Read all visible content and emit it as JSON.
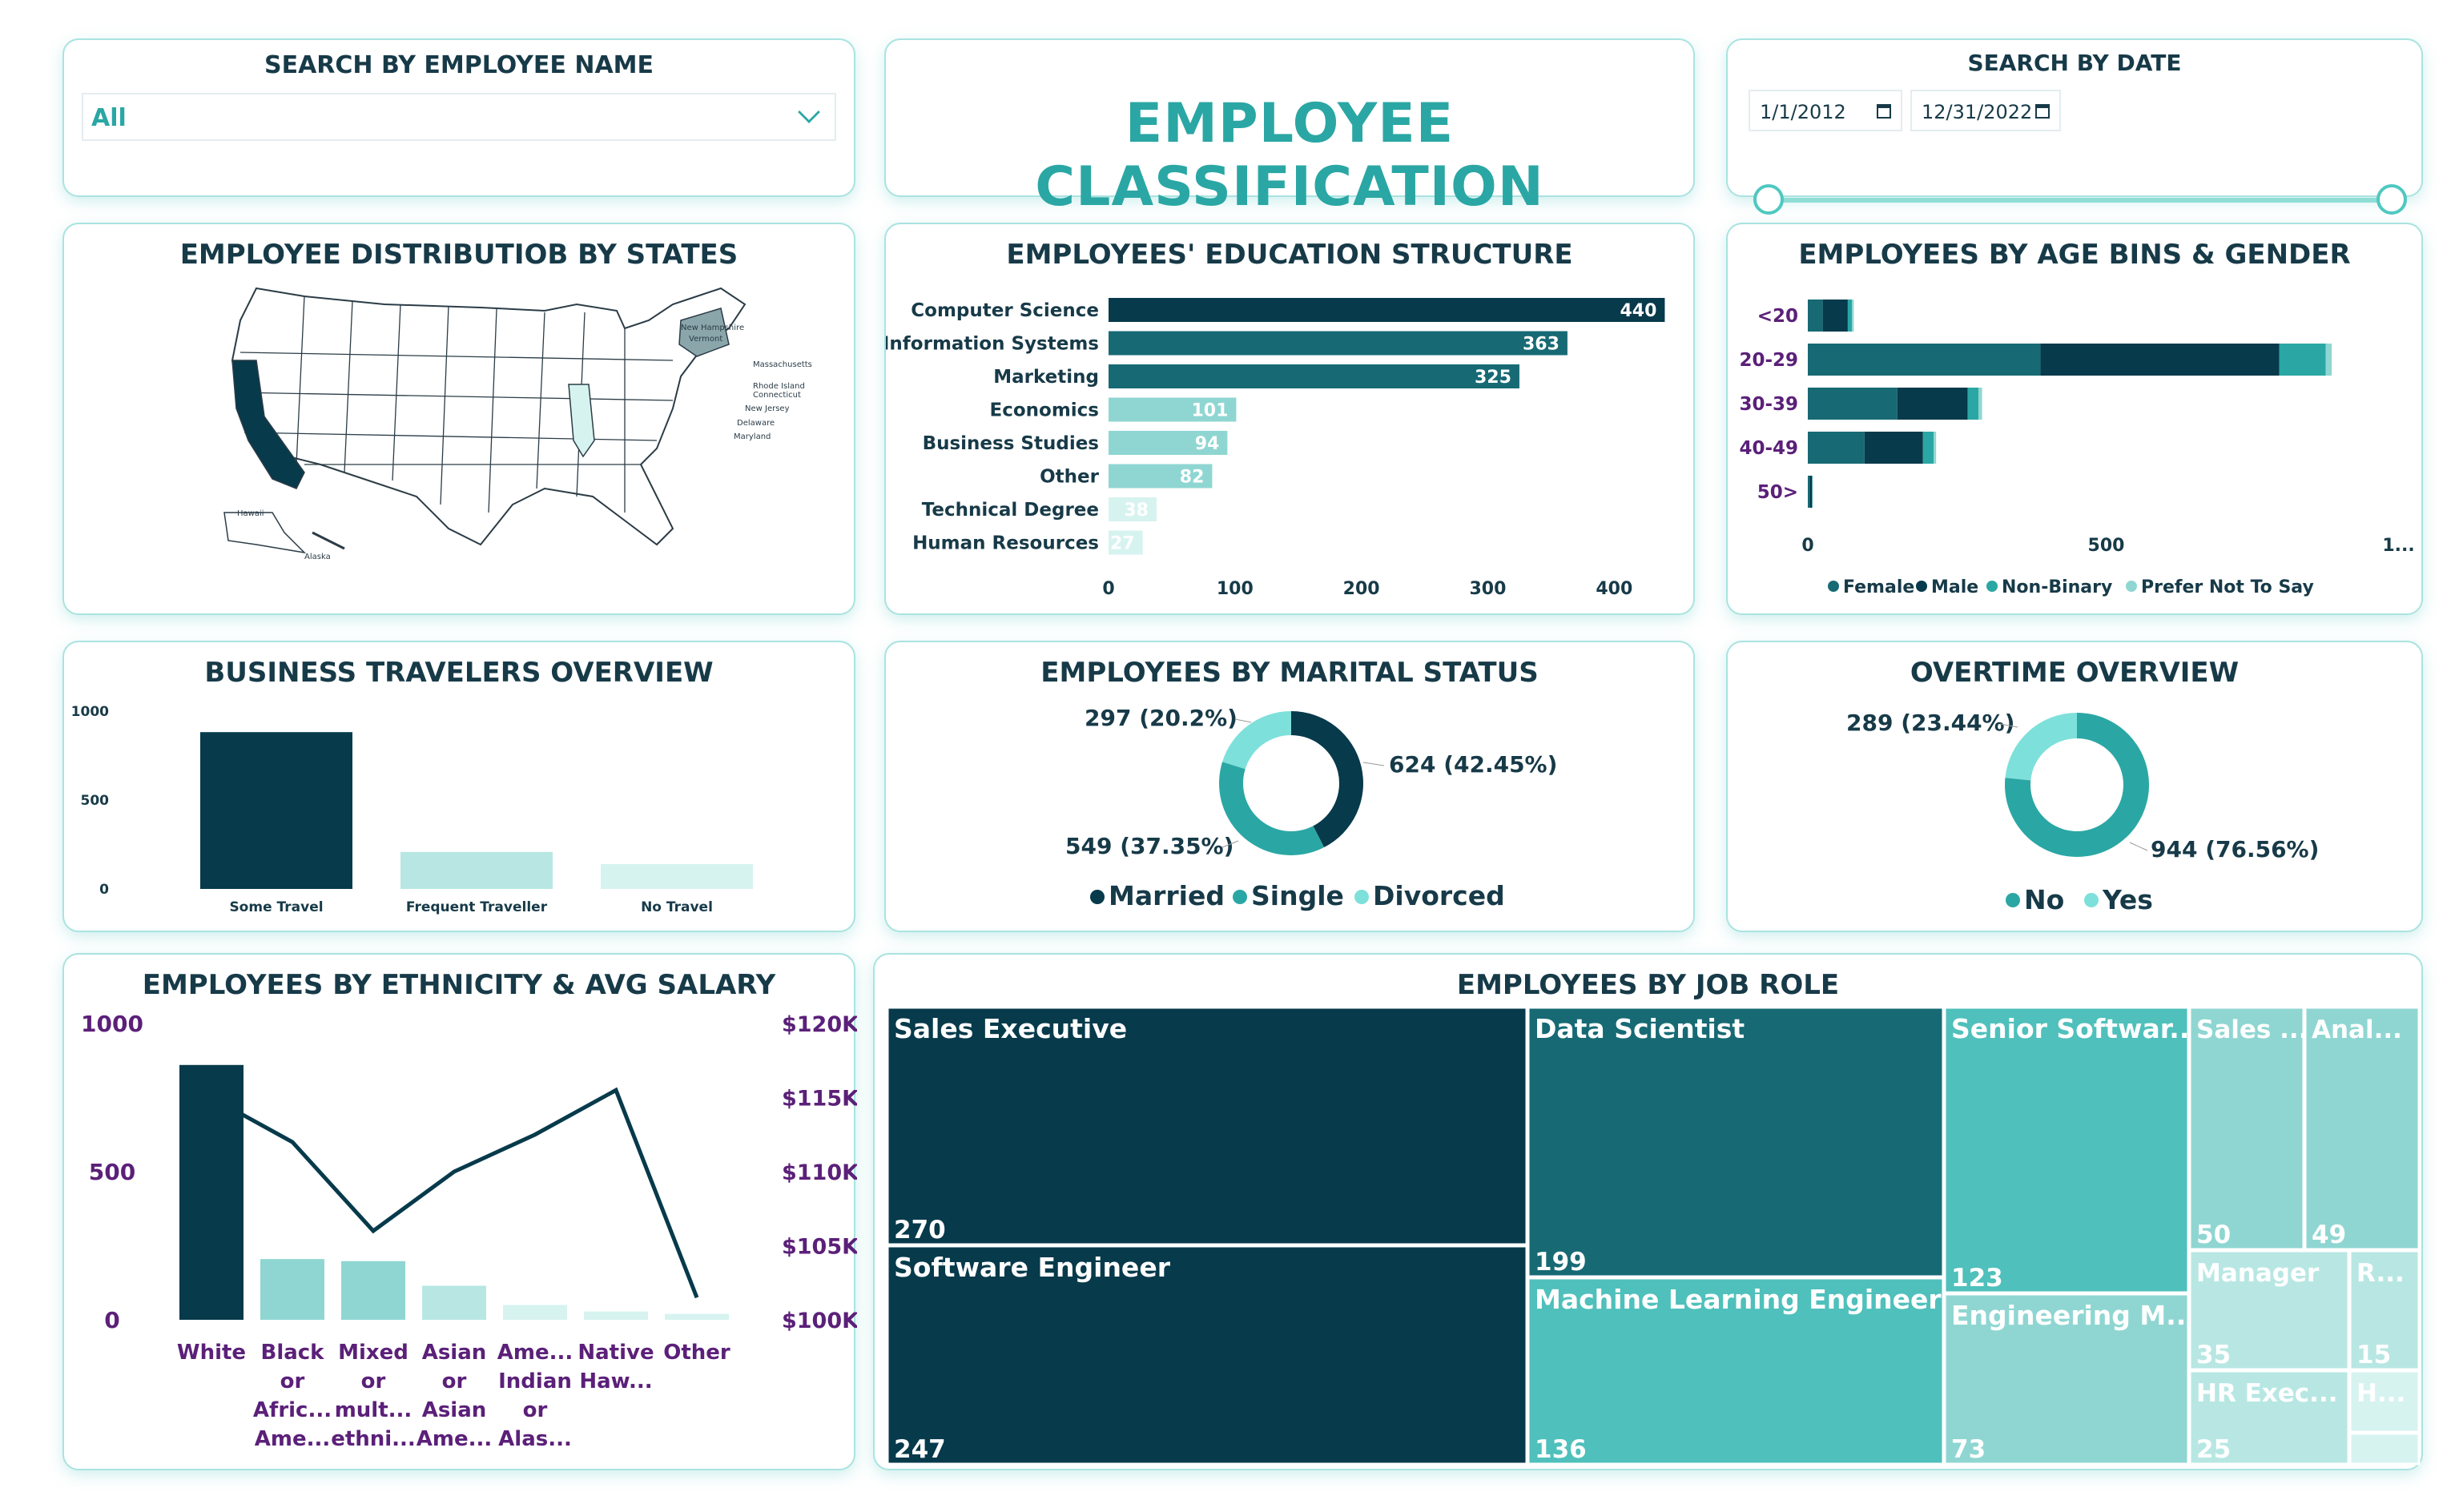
{
  "name_slicer": {
    "title": "SEARCH BY EMPLOYEE NAME",
    "value": "All"
  },
  "main_title": "EMPLOYEE CLASSIFICATION",
  "date_slicer": {
    "title": "SEARCH BY DATE",
    "start": "1/1/2012",
    "end": "12/31/2022"
  },
  "map_card": {
    "title": "EMPLOYEE DISTRIBUTIOB BY STATES",
    "labels": [
      "New Hampshire",
      "Vermont",
      "Massachusetts",
      "Rhode Island",
      "Connecticut",
      "New Jersey",
      "Delaware",
      "Maryland",
      "Hawaii",
      "Alaska"
    ]
  },
  "colors": {
    "dark": "#073a4b",
    "teal1": "#176a74",
    "teal2": "#2aa7a4",
    "teal3": "#4fc0bb",
    "light1": "#8fd6d2",
    "light2": "#b8e7e3",
    "light3": "#d6f3f0",
    "purple": "#5b2079"
  },
  "education": {
    "title": "EMPLOYEES' EDUCATION STRUCTURE",
    "chart_data": {
      "type": "bar",
      "orientation": "horizontal",
      "categories": [
        "Computer Science",
        "Information Systems",
        "Marketing",
        "Economics",
        "Business Studies",
        "Other",
        "Technical Degree",
        "Human Resources"
      ],
      "values": [
        440,
        363,
        325,
        101,
        94,
        82,
        38,
        27
      ],
      "xticks": [
        "0",
        "100",
        "200",
        "300",
        "400"
      ],
      "xlim": [
        0,
        460
      ]
    }
  },
  "age_gender": {
    "title": "EMPLOYEES BY AGE BINS & GENDER",
    "chart_data": {
      "type": "bar",
      "orientation": "horizontal",
      "stacked": true,
      "categories": [
        "<20",
        "20-29",
        "30-39",
        "40-49",
        "50>"
      ],
      "series": [
        {
          "name": "Female",
          "values": [
            25,
            390,
            150,
            95,
            3
          ]
        },
        {
          "name": "Male",
          "values": [
            42,
            400,
            118,
            98,
            4
          ]
        },
        {
          "name": "Non-Binary",
          "values": [
            7,
            78,
            18,
            18,
            1
          ]
        },
        {
          "name": "Prefer Not To Say",
          "values": [
            3,
            10,
            6,
            4,
            0
          ]
        }
      ],
      "xticks": [
        "0",
        "500",
        "1..."
      ],
      "xlim": [
        0,
        1000
      ],
      "legend": "bottom"
    }
  },
  "travel": {
    "title": "BUSINESS TRAVELERS OVERVIEW",
    "chart_data": {
      "type": "bar",
      "categories": [
        "Some Travel",
        "Frequent Traveller",
        "No Travel"
      ],
      "values": [
        882,
        208,
        140
      ],
      "yticks": [
        "1000",
        "500",
        "0"
      ],
      "ylim": [
        0,
        1000
      ]
    }
  },
  "marital": {
    "title": "EMPLOYEES BY MARITAL STATUS",
    "chart_data": {
      "type": "pie",
      "donut": true,
      "labels": [
        "Married",
        "Single",
        "Divorced"
      ],
      "values": [
        624,
        549,
        297
      ],
      "data_labels": [
        "624 (42.45%)",
        "549 (37.35%)",
        "297 (20.2%)"
      ],
      "legend": "bottom"
    }
  },
  "overtime": {
    "title": "OVERTIME OVERVIEW",
    "chart_data": {
      "type": "pie",
      "donut": true,
      "labels": [
        "No",
        "Yes"
      ],
      "values": [
        944,
        289
      ],
      "data_labels": [
        "944 (76.56%)",
        "289 (23.44%)"
      ],
      "legend": "bottom"
    }
  },
  "ethnicity": {
    "title": "EMPLOYEES BY ETHNICITY & AVG SALARY",
    "chart_data": {
      "type": "bar",
      "combo": "bar-line",
      "categories": [
        [
          "White"
        ],
        [
          "Black",
          "or",
          "Afric...",
          "Ame..."
        ],
        [
          "Mixed",
          "or",
          "mult...",
          "ethni..."
        ],
        [
          "Asian",
          "or",
          "Asian",
          "Ame..."
        ],
        [
          "Ame...",
          "Indian",
          "or",
          "Alas..."
        ],
        [
          "Native",
          "Haw..."
        ],
        [
          "Other"
        ]
      ],
      "series": [
        {
          "values": [
            860,
            205,
            198,
            115,
            50,
            28,
            20
          ],
          "axis": "left"
        },
        {
          "values": [
            115000,
            112000,
            106000,
            110000,
            112500,
            115500,
            101500
          ],
          "axis": "right",
          "type": "line"
        }
      ],
      "yticks_left": [
        "1000",
        "500",
        "0"
      ],
      "ylim_left": [
        0,
        1000
      ],
      "yticks_right": [
        "$120K",
        "$115K",
        "$110K",
        "$105K",
        "$100K"
      ],
      "ylim_right": [
        100000,
        120000
      ]
    }
  },
  "job_role": {
    "title": "EMPLOYEES BY JOB ROLE",
    "chart_data": {
      "type": "treemap",
      "items": [
        {
          "label": "Sales Executive",
          "value": "270"
        },
        {
          "label": "Software Engineer",
          "value": "247"
        },
        {
          "label": "Data Scientist",
          "value": "199"
        },
        {
          "label": "Machine Learning Engineer",
          "value": "136"
        },
        {
          "label": "Senior Softwar...",
          "value": "123"
        },
        {
          "label": "Engineering M...",
          "value": "73"
        },
        {
          "label": "Sales ...",
          "value": "50"
        },
        {
          "label": "Anal...",
          "value": "49"
        },
        {
          "label": "Manager",
          "value": "35"
        },
        {
          "label": "R...",
          "value": "15"
        },
        {
          "label": "HR Exec...",
          "value": "25"
        },
        {
          "label": "H...",
          "value": ""
        }
      ]
    }
  }
}
